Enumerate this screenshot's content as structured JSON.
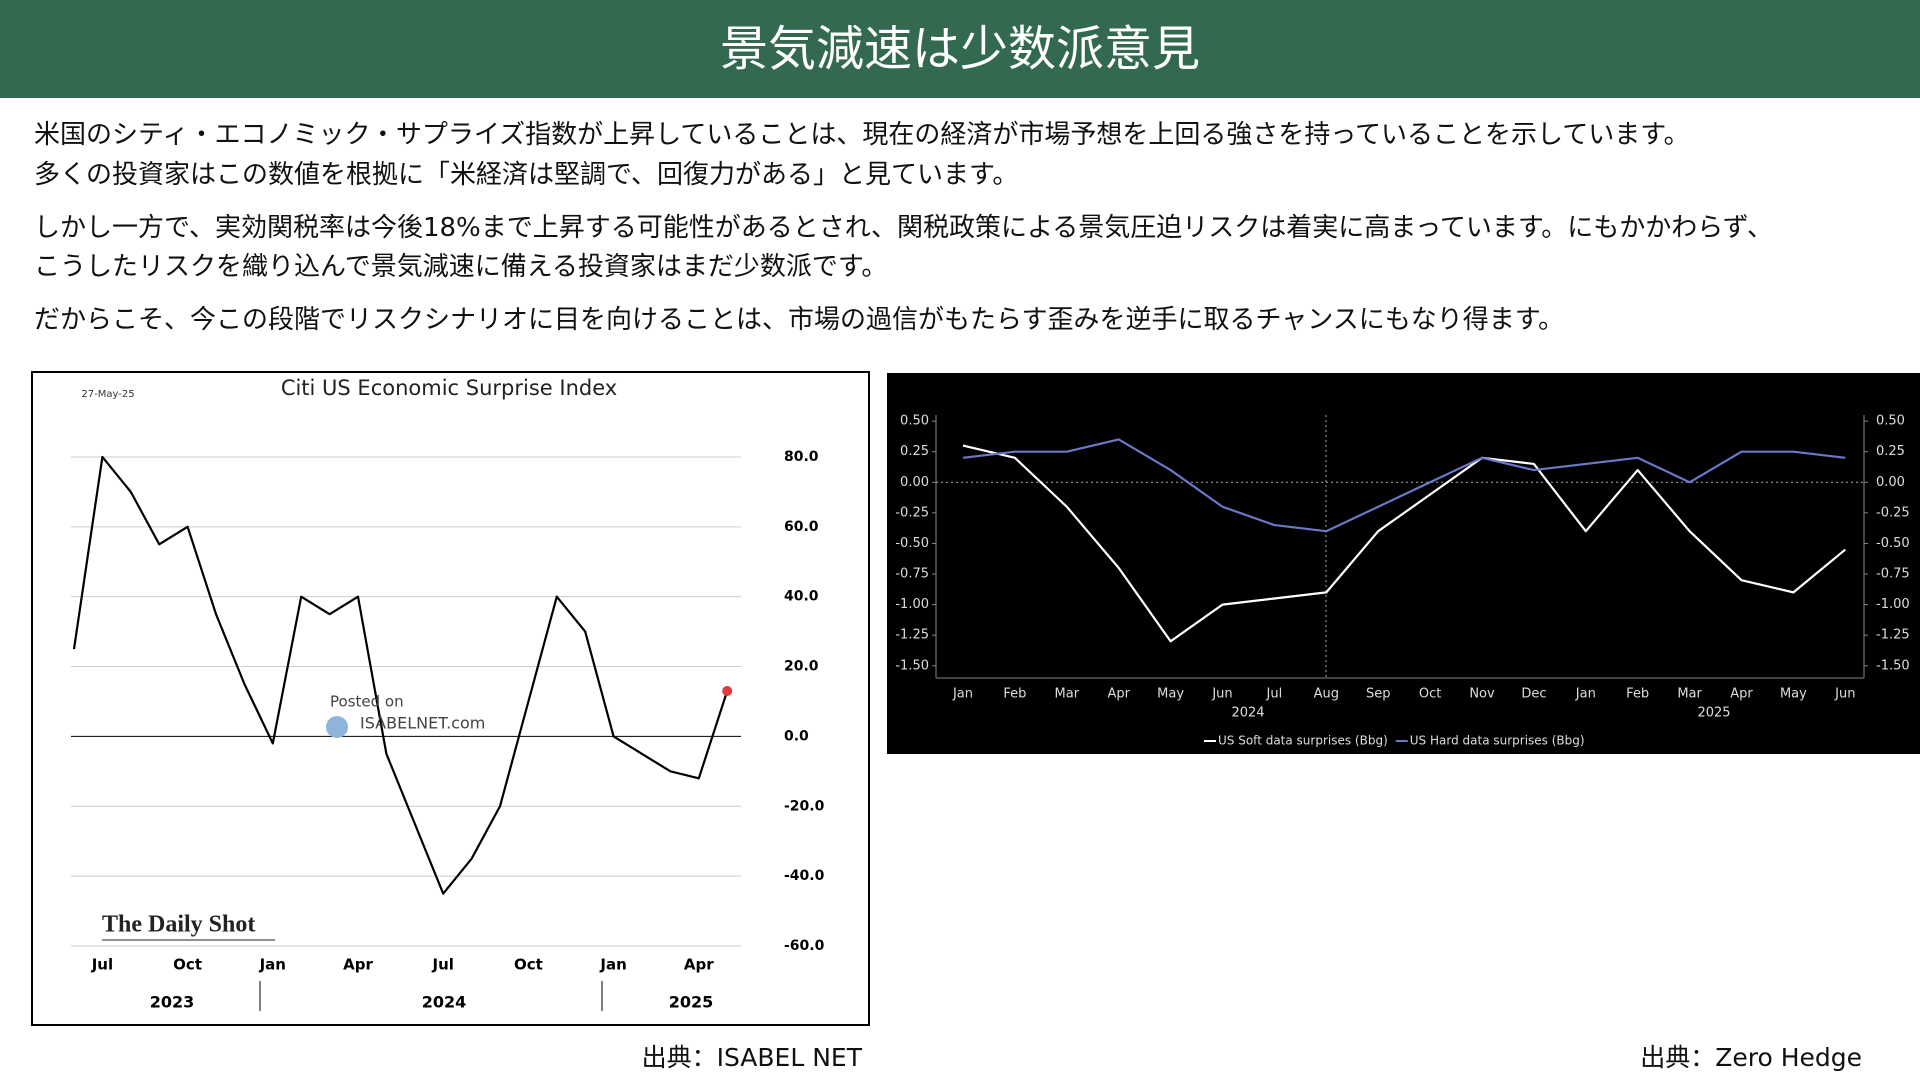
{
  "header": {
    "title": "景気減速は少数派意見"
  },
  "paragraphs": [
    [
      "米国のシティ・エコノミック・サプライズ指数が上昇していることは、現在の経済が市場予想を上回る強さを持っていることを示しています。",
      "多くの投資家はこの数値を根拠に「米経済は堅調で、回復力がある」と見ています。"
    ],
    [
      "しかし一方で、実効関税率は今後18%まで上昇する可能性があるとされ、関税政策による景気圧迫リスクは着実に高まっています。にもかかわらず、",
      "こうしたリスクを織り込んで景気減速に備える投資家はまだ少数派です。"
    ],
    [
      "だからこそ、今この段階でリスクシナリオに目を向けることは、市場の過信がもたらす歪みを逆手に取るチャンスにもなり得ます。"
    ]
  ],
  "sources": [
    "出典：ISABEL NET",
    "出典：Zero Hedge"
  ],
  "chart_data": [
    {
      "type": "line",
      "title": "Citi US Economic Surprise Index",
      "date": "27-May-25",
      "watermark": [
        "Posted on",
        "ISABELNET.com"
      ],
      "brand": "The Daily Shot",
      "categories": [
        null,
        "Jul",
        null,
        null,
        "Oct",
        null,
        null,
        "Jan",
        null,
        null,
        "Apr",
        null,
        null,
        "Jul",
        null,
        null,
        "Oct",
        null,
        null,
        "Jan",
        null,
        null,
        "Apr",
        null
      ],
      "year_labels": [
        "2023",
        "2024",
        "2025"
      ],
      "values": [
        25,
        80,
        70,
        55,
        60,
        35,
        15,
        -2,
        40,
        35,
        40,
        -5,
        -25,
        -45,
        -35,
        -20,
        10,
        40,
        30,
        0,
        -5,
        -10,
        -12,
        13
      ],
      "color": "#000000",
      "last_marker_color": "#e0393e",
      "ylim": [
        -62,
        88
      ],
      "yticks": [
        {
          "value": 80,
          "label": "80.0"
        },
        {
          "value": 60,
          "label": "60.0"
        },
        {
          "value": 40,
          "label": "40.0"
        },
        {
          "value": 20,
          "label": "20.0"
        },
        {
          "value": 0,
          "label": "0.0"
        },
        {
          "value": -20,
          "label": "-20.0"
        },
        {
          "value": -40,
          "label": "-40.0"
        },
        {
          "value": -60,
          "label": "-60.0"
        }
      ],
      "grid": true
    },
    {
      "type": "line",
      "categories": [
        "Jan",
        "Feb",
        "Mar",
        "Apr",
        "May",
        "Jun",
        "Jul",
        "Aug",
        "Sep",
        "Oct",
        "Nov",
        "Dec",
        "Jan",
        "Feb",
        "Mar",
        "Apr",
        "May",
        "Jun"
      ],
      "year_labels": [
        "2024",
        "2025"
      ],
      "series": [
        {
          "name": "US Soft data surprises (Bbg)",
          "color": "#ffffff",
          "values": [
            0.3,
            0.2,
            -0.2,
            -0.7,
            -1.3,
            -1.0,
            -0.95,
            -0.9,
            -0.4,
            -0.1,
            0.2,
            0.15,
            -0.4,
            0.1,
            -0.4,
            -0.8,
            -0.9,
            -0.55
          ]
        },
        {
          "name": "US Hard data surprises (Bbg)",
          "color": "#6b78c8",
          "values": [
            0.2,
            0.25,
            0.25,
            0.35,
            0.1,
            -0.2,
            -0.35,
            -0.4,
            -0.2,
            0.0,
            0.2,
            0.1,
            0.15,
            0.2,
            0.0,
            0.25,
            0.25,
            0.2
          ]
        }
      ],
      "ylim": [
        -1.6,
        0.55
      ],
      "yticks": [
        {
          "value": 0.5,
          "label": "0.50"
        },
        {
          "value": 0.25,
          "label": "0.25"
        },
        {
          "value": 0,
          "label": "0.00"
        },
        {
          "value": -0.25,
          "label": "-0.25"
        },
        {
          "value": -0.5,
          "label": "-0.50"
        },
        {
          "value": -0.75,
          "label": "-0.75"
        },
        {
          "value": -1,
          "label": "-1.00"
        },
        {
          "value": -1.25,
          "label": "-1.25"
        },
        {
          "value": -1.5,
          "label": "-1.50"
        }
      ],
      "legend": "bottom"
    }
  ]
}
